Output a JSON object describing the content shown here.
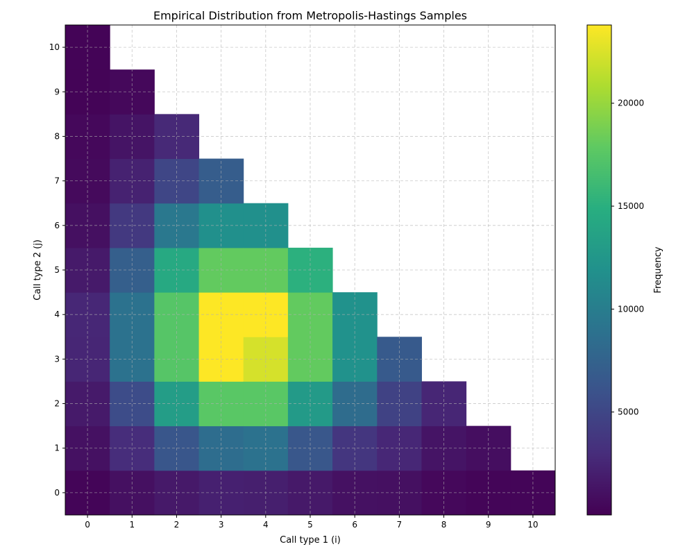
{
  "chart_data": {
    "type": "heatmap",
    "title": "Empirical Distribution from Metropolis-Hastings Samples",
    "xlabel": "Call type 1 (i)",
    "ylabel": "Call type 2 (j)",
    "x_ticks": [
      "0",
      "1",
      "2",
      "3",
      "4",
      "5",
      "6",
      "7",
      "8",
      "9",
      "10"
    ],
    "y_ticks": [
      "0",
      "1",
      "2",
      "3",
      "4",
      "5",
      "6",
      "7",
      "8",
      "9",
      "10"
    ],
    "xlim": [
      -0.5,
      10.5
    ],
    "ylim": [
      -0.5,
      10.5
    ],
    "grid": true,
    "colormap": "viridis",
    "colorbar": {
      "label": "Frequency",
      "min": 0,
      "max": 23800,
      "ticks": [
        5000,
        10000,
        15000,
        20000
      ],
      "tick_labels": [
        "5000",
        "10000",
        "15000",
        "20000"
      ]
    },
    "constraint": "i + j <= 10",
    "values": [
      [
        300,
        1100,
        1700,
        2500,
        2600,
        1700,
        1000,
        600,
        500,
        200,
        200
      ],
      [
        1000,
        3000,
        5500,
        8900,
        8900,
        7200,
        3900,
        2200,
        1300,
        500
      ],
      [
        1600,
        6300,
        13100,
        17400,
        17400,
        14400,
        9500,
        5000,
        2700
      ],
      [
        2100,
        8500,
        17600,
        23800,
        23800,
        18000,
        11800,
        7000
      ],
      [
        2000,
        8900,
        17600,
        22300,
        23800,
        18000,
        11800
      ],
      [
        1600,
        6400,
        12800,
        18000,
        18000,
        15100
      ],
      [
        1100,
        3700,
        8400,
        12000,
        12000
      ],
      [
        1000,
        2600,
        4700,
        6700
      ],
      [
        500,
        1300,
        2500
      ],
      [
        300,
        900
      ],
      [
        300
      ]
    ]
  }
}
